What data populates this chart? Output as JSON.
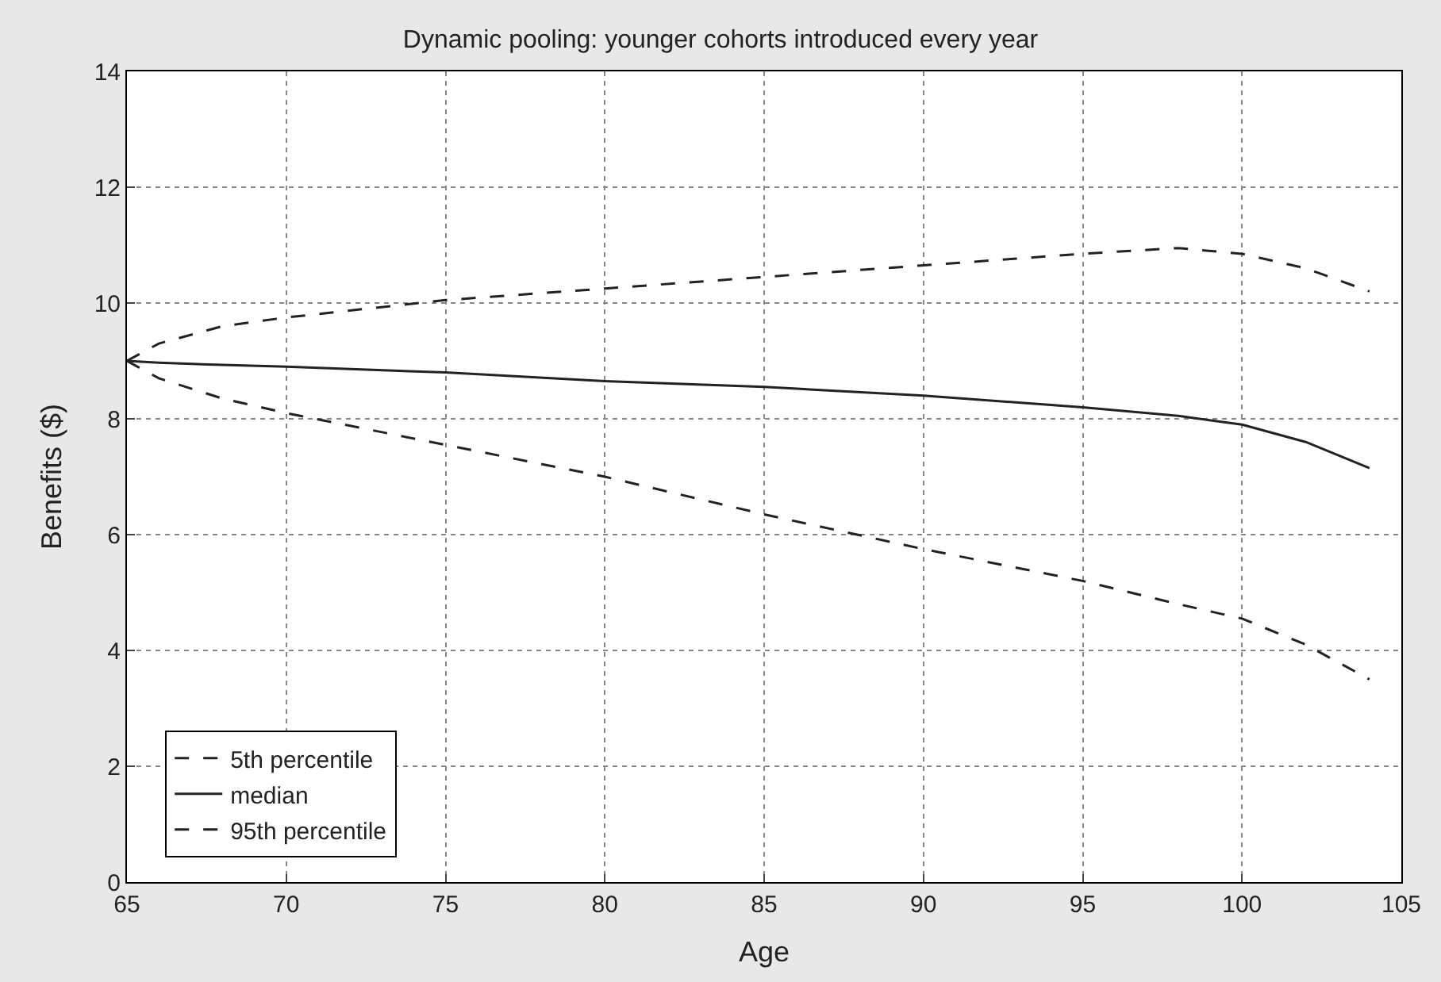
{
  "chart_data": {
    "type": "line",
    "title": "Dynamic pooling: younger cohorts introduced every year",
    "xlabel": "Age",
    "ylabel": "Benefits ($)",
    "xlim": [
      65,
      105
    ],
    "xticks": [
      65,
      70,
      75,
      80,
      85,
      90,
      95,
      100,
      105
    ],
    "ylim": [
      0,
      14
    ],
    "yticks": [
      0,
      2,
      4,
      6,
      8,
      10,
      12,
      14
    ],
    "grid": true,
    "legend": "bottom left",
    "marker": "none",
    "x": [
      65,
      66,
      68,
      70,
      75,
      80,
      85,
      90,
      95,
      98,
      100,
      102,
      104
    ],
    "series": [
      {
        "name": "5th percentile",
        "color": "#222222",
        "line_style": "dashed",
        "values": [
          9.0,
          8.7,
          8.35,
          8.1,
          7.55,
          7.0,
          6.35,
          5.75,
          5.2,
          4.8,
          4.55,
          4.1,
          3.5
        ]
      },
      {
        "name": "median",
        "color": "#222222",
        "line_style": "solid",
        "values": [
          9.0,
          8.97,
          8.93,
          8.9,
          8.8,
          8.65,
          8.55,
          8.4,
          8.2,
          8.05,
          7.9,
          7.6,
          7.15
        ]
      },
      {
        "name": "95th percentile",
        "color": "#222222",
        "line_style": "dashed",
        "values": [
          9.0,
          9.3,
          9.6,
          9.75,
          10.05,
          10.25,
          10.45,
          10.65,
          10.85,
          10.95,
          10.85,
          10.6,
          10.2
        ]
      }
    ]
  }
}
